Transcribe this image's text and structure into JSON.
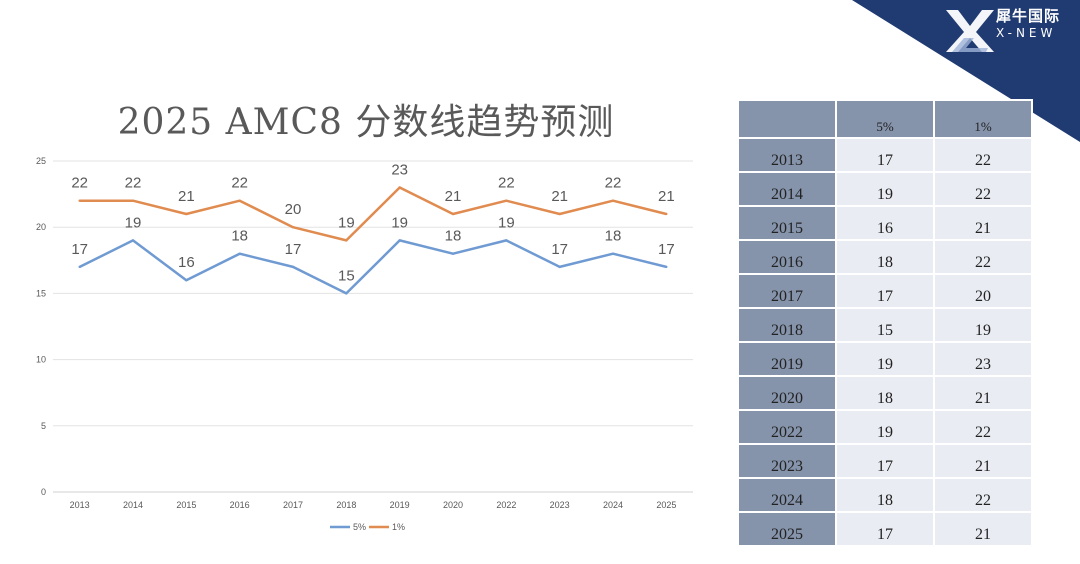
{
  "brand": {
    "name_cn": "犀牛国际",
    "name_en": "X-NEW",
    "background_color": "#1f3b72"
  },
  "chart_data": {
    "type": "line",
    "title": "2025 AMC8 分数线趋势预测",
    "categories": [
      "2013",
      "2014",
      "2015",
      "2016",
      "2017",
      "2018",
      "2019",
      "2020",
      "2022",
      "2023",
      "2024",
      "2025"
    ],
    "series": [
      {
        "name": "5%",
        "color": "#6f9ad2",
        "values": [
          17,
          19,
          16,
          18,
          17,
          15,
          19,
          18,
          19,
          17,
          18,
          17
        ]
      },
      {
        "name": "1%",
        "color": "#e08b4f",
        "values": [
          22,
          22,
          21,
          22,
          20,
          19,
          23,
          21,
          22,
          21,
          22,
          21
        ]
      }
    ],
    "yticks": [
      0,
      5,
      10,
      15,
      20,
      25
    ],
    "ylim": [
      0,
      25
    ],
    "grid": true,
    "data_labels": true,
    "legend": "bottom-center",
    "xlabel": "",
    "ylabel": ""
  },
  "table": {
    "headers": [
      "",
      "5%",
      "1%"
    ],
    "rows": [
      [
        "2013",
        "17",
        "22"
      ],
      [
        "2014",
        "19",
        "22"
      ],
      [
        "2015",
        "16",
        "21"
      ],
      [
        "2016",
        "18",
        "22"
      ],
      [
        "2017",
        "17",
        "20"
      ],
      [
        "2018",
        "15",
        "19"
      ],
      [
        "2019",
        "19",
        "23"
      ],
      [
        "2020",
        "18",
        "21"
      ],
      [
        "2022",
        "19",
        "22"
      ],
      [
        "2023",
        "17",
        "21"
      ],
      [
        "2024",
        "18",
        "22"
      ],
      [
        "2025",
        "17",
        "21"
      ]
    ]
  }
}
